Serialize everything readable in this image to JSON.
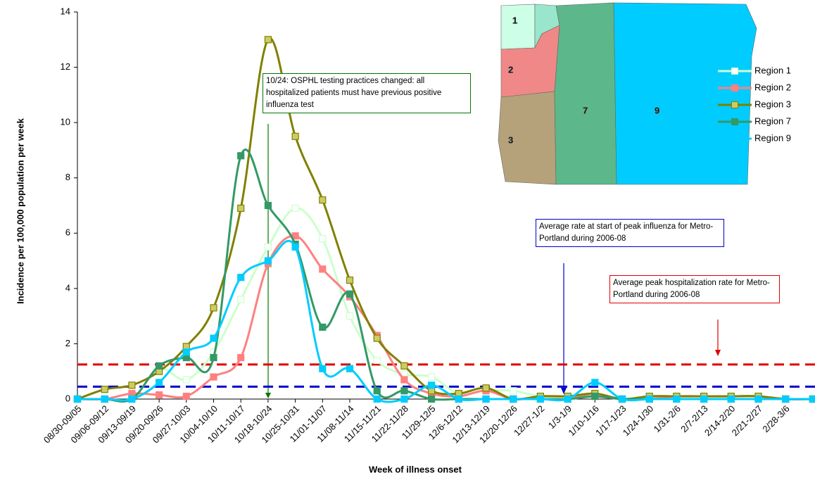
{
  "chart_data": {
    "type": "line",
    "y_label": "Incidence per 100,000 population per week",
    "x_label": "Week of illness onset",
    "categories": [
      "08/30-09/05",
      "09/06-09/12",
      "09/13-09/19",
      "09/20-09/26",
      "09/27-10/03",
      "10/04-10/10",
      "10/11-10/17",
      "10/18-10/24",
      "10/25-10/31",
      "11/01-11/07",
      "11/08-11/14",
      "11/15-11/21",
      "11/22-11/28",
      "11/29-12/5",
      "12/6-12/12",
      "12/13-12/19",
      "12/20-12/26",
      "12/27-1/2",
      "1/3-1/9",
      "1/10-1/16",
      "1/17-1/23",
      "1/24-1/30",
      "1/31-2/6",
      "2/7-2/13",
      "2/14-2/20",
      "2/21-2/27",
      "2/28-3/6",
      null
    ],
    "ylim": [
      0,
      14
    ],
    "yticks": [
      0,
      2,
      4,
      6,
      8,
      10,
      12,
      14
    ],
    "series": [
      {
        "name": "Region 1",
        "color": "#ccffcc",
        "values": [
          0,
          0,
          0,
          1.1,
          0.7,
          1.7,
          3.6,
          5.5,
          6.9,
          5.8,
          3.0,
          1.4,
          0.9,
          0.8,
          0.2,
          0.3,
          0.3,
          0.1,
          0.1,
          0.2,
          0,
          0.1,
          0.1,
          0.1,
          0.1,
          0.1,
          0,
          0
        ]
      },
      {
        "name": "Region 2",
        "color": "#ff8080",
        "values": [
          0,
          0,
          0.2,
          0.15,
          0.1,
          0.8,
          1.5,
          4.9,
          5.9,
          4.7,
          3.7,
          2.3,
          0.7,
          0.2,
          0.1,
          0.3,
          0,
          0.1,
          0.1,
          0.1,
          0,
          0,
          0.1,
          0.1,
          0.1,
          0.1,
          0,
          0
        ]
      },
      {
        "name": "Region 3",
        "color": "#808000",
        "values": [
          0,
          0.35,
          0.5,
          1.0,
          1.9,
          3.3,
          6.9,
          13.0,
          9.5,
          7.2,
          4.3,
          2.2,
          1.2,
          0.3,
          0.2,
          0.4,
          0,
          0.1,
          0.1,
          0.2,
          0,
          0.1,
          0.1,
          0.1,
          0.1,
          0.1,
          0,
          0
        ]
      },
      {
        "name": "Region 7",
        "color": "#339966",
        "values": [
          0,
          0,
          0,
          1.2,
          1.5,
          1.5,
          8.8,
          7.0,
          5.6,
          2.6,
          3.8,
          0.3,
          0.3,
          0,
          0,
          0,
          0,
          0,
          0,
          0.1,
          0,
          0,
          0,
          0,
          0,
          0,
          0,
          0
        ]
      },
      {
        "name": "Region 9",
        "color": "#00ccff",
        "values": [
          0,
          0,
          0,
          0.6,
          1.7,
          2.2,
          4.4,
          5.0,
          5.5,
          1.1,
          1.1,
          0,
          0,
          0.5,
          0,
          0,
          0,
          0,
          0,
          0.6,
          0,
          0,
          0,
          0,
          0,
          0,
          0,
          0
        ]
      }
    ],
    "reference_lines": [
      {
        "value": 1.25,
        "color": "#e00000",
        "label": "Average peak hospitalization rate for Metro-Portland during 2006-08"
      },
      {
        "value": 0.45,
        "color": "#0000cc",
        "label": "Average rate at start of peak influenza for Metro-Portland during 2006-08"
      }
    ],
    "annotation": "10/24: OSPHL testing practices changed: all hospitalized patients must have previous positive influenza test",
    "map_labels": [
      "1",
      "2",
      "7",
      "9",
      "3"
    ]
  }
}
